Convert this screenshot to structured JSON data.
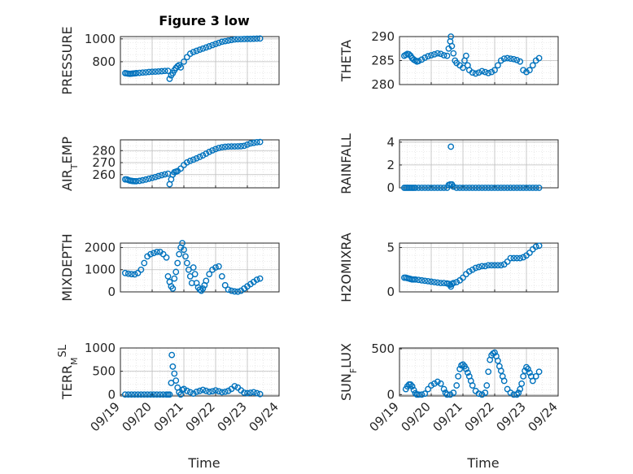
{
  "figure": {
    "title": "Figure 3 low",
    "xlabel": "Time",
    "x_tick_labels": [
      "09/19",
      "09/20",
      "09/21",
      "09/22",
      "09/23",
      "09/24"
    ],
    "marker_color": "#0072BD",
    "grid": "dotted minor + major"
  },
  "chart_data": [
    {
      "type": "scatter",
      "ylabel": "PRESSURE",
      "ylabel_parts": [
        [
          "PRESSURE",
          "n"
        ]
      ],
      "xlim": [
        0,
        5
      ],
      "ylim": [
        600,
        1020
      ],
      "yticks": [
        800,
        1000
      ],
      "x": [
        0.15,
        0.2,
        0.25,
        0.3,
        0.35,
        0.4,
        0.45,
        0.5,
        0.6,
        0.7,
        0.8,
        0.9,
        1.0,
        1.1,
        1.2,
        1.3,
        1.4,
        1.5,
        1.55,
        1.6,
        1.65,
        1.7,
        1.75,
        1.8,
        1.85,
        1.9,
        2.0,
        2.1,
        2.2,
        2.3,
        2.4,
        2.5,
        2.6,
        2.7,
        2.8,
        2.9,
        3.0,
        3.1,
        3.2,
        3.3,
        3.4,
        3.5,
        3.6,
        3.7,
        3.8,
        3.9,
        4.0,
        4.1,
        4.2,
        4.3,
        4.4
      ],
      "y": [
        700,
        698,
        695,
        694,
        695,
        697,
        698,
        700,
        702,
        705,
        707,
        710,
        712,
        713,
        715,
        717,
        719,
        720,
        650,
        680,
        700,
        725,
        745,
        760,
        770,
        750,
        800,
        840,
        870,
        885,
        895,
        905,
        915,
        925,
        935,
        945,
        955,
        965,
        975,
        980,
        985,
        990,
        995,
        997,
        998,
        999,
        1000,
        1000,
        1001,
        1002,
        1003
      ]
    },
    {
      "type": "scatter",
      "ylabel": "THETA",
      "ylabel_parts": [
        [
          "THETA",
          "n"
        ]
      ],
      "xlim": [
        0,
        5
      ],
      "ylim": [
        280,
        290
      ],
      "yticks": [
        280,
        285,
        290
      ],
      "x": [
        0.15,
        0.2,
        0.25,
        0.3,
        0.35,
        0.4,
        0.45,
        0.5,
        0.55,
        0.6,
        0.7,
        0.8,
        0.9,
        1.0,
        1.1,
        1.2,
        1.3,
        1.4,
        1.5,
        1.55,
        1.6,
        1.62,
        1.65,
        1.7,
        1.75,
        1.8,
        1.9,
        2.0,
        2.05,
        2.1,
        2.15,
        2.2,
        2.3,
        2.4,
        2.5,
        2.6,
        2.7,
        2.8,
        2.9,
        3.0,
        3.1,
        3.2,
        3.3,
        3.4,
        3.5,
        3.6,
        3.7,
        3.8,
        3.9,
        4.0,
        4.1,
        4.2,
        4.3,
        4.4
      ],
      "y": [
        286,
        286.2,
        286.4,
        286.3,
        286,
        285.5,
        285.2,
        285,
        284.8,
        284.9,
        285.2,
        285.6,
        285.9,
        286.1,
        286.3,
        286.5,
        286.4,
        286.1,
        286,
        287.5,
        289,
        290,
        288,
        286.5,
        285,
        284.5,
        284,
        283.5,
        285,
        286,
        284,
        283,
        282.5,
        282.3,
        282.5,
        282.8,
        282.6,
        282.4,
        282.6,
        283,
        284,
        285,
        285.4,
        285.5,
        285.4,
        285.3,
        285.1,
        284.8,
        283,
        282.6,
        283,
        284,
        285,
        285.5
      ]
    },
    {
      "type": "scatter",
      "ylabel": "AIR_TEMP",
      "ylabel_parts": [
        [
          "AIR",
          "n"
        ],
        [
          "T",
          "sub"
        ],
        [
          "EMP",
          "n"
        ]
      ],
      "xlim": [
        0,
        5
      ],
      "ylim": [
        249,
        289
      ],
      "yticks": [
        260,
        270,
        280
      ],
      "x": [
        0.15,
        0.2,
        0.25,
        0.3,
        0.35,
        0.4,
        0.45,
        0.5,
        0.6,
        0.7,
        0.8,
        0.9,
        1.0,
        1.1,
        1.2,
        1.3,
        1.4,
        1.5,
        1.55,
        1.6,
        1.65,
        1.7,
        1.75,
        1.8,
        1.9,
        2.0,
        2.1,
        2.2,
        2.3,
        2.4,
        2.5,
        2.6,
        2.7,
        2.8,
        2.9,
        3.0,
        3.1,
        3.2,
        3.3,
        3.4,
        3.5,
        3.6,
        3.7,
        3.8,
        3.9,
        4.0,
        4.1,
        4.2,
        4.3,
        4.4
      ],
      "y": [
        256,
        256,
        255.5,
        255,
        254.8,
        254.6,
        254.5,
        254.5,
        254.8,
        255.3,
        255.9,
        256.6,
        257.3,
        258,
        258.8,
        259.5,
        260.2,
        260.8,
        252,
        256,
        260,
        262,
        262.5,
        263,
        265,
        268,
        270.2,
        271.5,
        272.5,
        273.6,
        274.8,
        276,
        277.5,
        279,
        280.2,
        281.3,
        282.2,
        282.8,
        283.2,
        283.4,
        283.5,
        283.5,
        283.6,
        283.7,
        284,
        285,
        286,
        286.5,
        287,
        287.2
      ]
    },
    {
      "type": "scatter",
      "ylabel": "RAINFALL",
      "ylabel_parts": [
        [
          "RAINFALL",
          "n"
        ]
      ],
      "xlim": [
        0,
        5
      ],
      "ylim": [
        0,
        4.2
      ],
      "yticks": [
        0,
        2,
        4
      ],
      "x": [
        0.15,
        0.2,
        0.25,
        0.3,
        0.35,
        0.4,
        0.45,
        0.5,
        0.6,
        0.7,
        0.8,
        0.9,
        1.0,
        1.1,
        1.2,
        1.3,
        1.4,
        1.5,
        1.55,
        1.6,
        1.62,
        1.65,
        1.7,
        1.8,
        1.9,
        2.0,
        2.1,
        2.2,
        2.3,
        2.4,
        2.5,
        2.6,
        2.7,
        2.8,
        2.9,
        3.0,
        3.1,
        3.2,
        3.3,
        3.4,
        3.5,
        3.6,
        3.7,
        3.8,
        3.9,
        4.0,
        4.1,
        4.2,
        4.3,
        4.4
      ],
      "y": [
        0,
        0,
        0,
        0,
        0,
        0,
        0,
        0,
        0,
        0,
        0,
        0,
        0,
        0,
        0,
        0,
        0,
        0,
        0.25,
        0.3,
        3.6,
        0.3,
        0.1,
        0,
        0,
        0,
        0,
        0,
        0,
        0,
        0,
        0,
        0,
        0,
        0,
        0,
        0,
        0,
        0,
        0,
        0,
        0,
        0,
        0,
        0,
        0,
        0,
        0,
        0,
        0
      ]
    },
    {
      "type": "scatter",
      "ylabel": "MIXDEPTH",
      "ylabel_parts": [
        [
          "MIXDEPTH",
          "n"
        ]
      ],
      "xlim": [
        0,
        5
      ],
      "ylim": [
        0,
        2200
      ],
      "yticks": [
        0,
        1000,
        2000
      ],
      "x": [
        0.15,
        0.25,
        0.35,
        0.45,
        0.55,
        0.65,
        0.75,
        0.85,
        0.95,
        1.05,
        1.15,
        1.25,
        1.35,
        1.45,
        1.5,
        1.55,
        1.6,
        1.65,
        1.7,
        1.75,
        1.8,
        1.85,
        1.9,
        1.95,
        2.0,
        2.05,
        2.1,
        2.15,
        2.2,
        2.25,
        2.3,
        2.35,
        2.4,
        2.45,
        2.5,
        2.55,
        2.6,
        2.65,
        2.7,
        2.8,
        2.9,
        3.0,
        3.1,
        3.2,
        3.3,
        3.4,
        3.5,
        3.6,
        3.7,
        3.8,
        3.9,
        4.0,
        4.1,
        4.2,
        4.3,
        4.4
      ],
      "y": [
        850,
        820,
        800,
        790,
        850,
        1000,
        1300,
        1600,
        1700,
        1750,
        1800,
        1800,
        1700,
        1550,
        700,
        450,
        250,
        150,
        600,
        900,
        1300,
        1700,
        2000,
        2200,
        1900,
        1600,
        1300,
        1000,
        700,
        400,
        1100,
        800,
        400,
        200,
        100,
        50,
        150,
        300,
        500,
        800,
        1000,
        1100,
        1150,
        700,
        300,
        100,
        50,
        20,
        10,
        50,
        150,
        250,
        350,
        450,
        550,
        600
      ]
    },
    {
      "type": "scatter",
      "ylabel": "H2OMIXRA",
      "ylabel_parts": [
        [
          "H2OMIXRA",
          "n"
        ]
      ],
      "xlim": [
        0,
        5
      ],
      "ylim": [
        0,
        5.5
      ],
      "yticks": [
        0,
        5
      ],
      "x": [
        0.15,
        0.2,
        0.25,
        0.3,
        0.35,
        0.4,
        0.45,
        0.5,
        0.6,
        0.7,
        0.8,
        0.9,
        1.0,
        1.1,
        1.2,
        1.3,
        1.4,
        1.5,
        1.55,
        1.6,
        1.62,
        1.65,
        1.7,
        1.8,
        1.9,
        2.0,
        2.1,
        2.2,
        2.3,
        2.4,
        2.5,
        2.6,
        2.7,
        2.8,
        2.9,
        3.0,
        3.1,
        3.2,
        3.3,
        3.4,
        3.5,
        3.6,
        3.7,
        3.8,
        3.9,
        4.0,
        4.1,
        4.2,
        4.3,
        4.4
      ],
      "y": [
        1.6,
        1.6,
        1.55,
        1.5,
        1.45,
        1.4,
        1.4,
        1.4,
        1.35,
        1.3,
        1.25,
        1.2,
        1.15,
        1.1,
        1.05,
        1,
        1,
        0.95,
        0.9,
        0.8,
        0.6,
        0.9,
        1.0,
        1.1,
        1.3,
        1.6,
        2.0,
        2.3,
        2.5,
        2.7,
        2.8,
        2.9,
        2.9,
        3.0,
        3.0,
        3.0,
        3.0,
        3.0,
        3.1,
        3.4,
        3.8,
        3.8,
        3.8,
        3.8,
        3.9,
        4.1,
        4.4,
        4.8,
        5.1,
        5.2
      ]
    },
    {
      "type": "scatter",
      "ylabel": "TERR_MSL",
      "ylabel_parts": [
        [
          "TERR",
          "n"
        ],
        [
          "M",
          "sub"
        ],
        [
          "SL",
          "sup"
        ]
      ],
      "xlim": [
        0,
        5
      ],
      "ylim": [
        -30,
        1000
      ],
      "yticks": [
        0,
        500,
        1000
      ],
      "x": [
        0.15,
        0.25,
        0.35,
        0.45,
        0.55,
        0.65,
        0.75,
        0.85,
        0.95,
        1.05,
        1.15,
        1.25,
        1.35,
        1.45,
        1.5,
        1.55,
        1.6,
        1.62,
        1.65,
        1.7,
        1.75,
        1.8,
        1.85,
        1.9,
        1.95,
        2.0,
        2.1,
        2.2,
        2.3,
        2.4,
        2.5,
        2.6,
        2.7,
        2.8,
        2.9,
        3.0,
        3.1,
        3.2,
        3.3,
        3.4,
        3.5,
        3.6,
        3.7,
        3.8,
        3.9,
        4.0,
        4.1,
        4.2,
        4.3,
        4.4
      ],
      "y": [
        0,
        0,
        0,
        0,
        0,
        0,
        0,
        0,
        0,
        0,
        0,
        0,
        0,
        0,
        0,
        0,
        250,
        850,
        600,
        450,
        300,
        150,
        50,
        0,
        100,
        120,
        80,
        50,
        20,
        60,
        80,
        100,
        80,
        60,
        70,
        90,
        70,
        50,
        60,
        80,
        120,
        180,
        150,
        90,
        40,
        30,
        40,
        50,
        30,
        10
      ]
    },
    {
      "type": "scatter",
      "ylabel": "SUN_FLUX",
      "ylabel_parts": [
        [
          "SUN",
          "n"
        ],
        [
          "F",
          "sub"
        ],
        [
          "LUX",
          "n"
        ]
      ],
      "xlim": [
        0,
        5
      ],
      "ylim": [
        -15,
        510
      ],
      "yticks": [
        0,
        500
      ],
      "x": [
        0.2,
        0.25,
        0.3,
        0.35,
        0.4,
        0.45,
        0.5,
        0.55,
        0.6,
        0.7,
        0.8,
        0.9,
        1.0,
        1.1,
        1.2,
        1.3,
        1.4,
        1.45,
        1.5,
        1.6,
        1.7,
        1.8,
        1.85,
        1.9,
        1.95,
        2.0,
        2.05,
        2.1,
        2.15,
        2.2,
        2.25,
        2.3,
        2.4,
        2.5,
        2.6,
        2.7,
        2.75,
        2.8,
        2.85,
        2.9,
        2.95,
        3.0,
        3.05,
        3.1,
        3.15,
        3.2,
        3.25,
        3.3,
        3.4,
        3.5,
        3.6,
        3.7,
        3.75,
        3.8,
        3.85,
        3.9,
        3.95,
        4.0,
        4.05,
        4.1,
        4.15,
        4.2,
        4.3,
        4.4
      ],
      "y": [
        60,
        90,
        110,
        110,
        90,
        50,
        15,
        0,
        0,
        0,
        10,
        60,
        100,
        120,
        140,
        120,
        60,
        20,
        0,
        0,
        20,
        100,
        200,
        280,
        320,
        330,
        310,
        280,
        240,
        200,
        150,
        100,
        40,
        10,
        0,
        20,
        100,
        250,
        380,
        430,
        450,
        460,
        420,
        370,
        310,
        260,
        200,
        150,
        60,
        20,
        0,
        0,
        20,
        60,
        120,
        200,
        260,
        300,
        280,
        240,
        200,
        150,
        200,
        250
      ]
    }
  ]
}
